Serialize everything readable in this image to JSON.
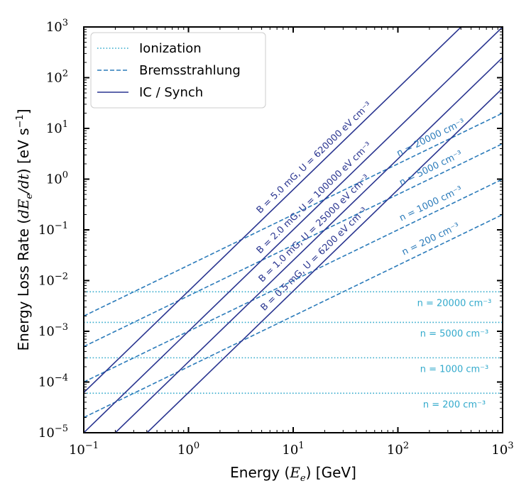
{
  "chart_data": {
    "type": "line",
    "xlabel": "Energy (E_e) [GeV]",
    "ylabel": "Energy Loss Rate (dE_e/dt) [eV s^-1]",
    "xscale": "log",
    "yscale": "log",
    "xlim": [
      0.1,
      1000
    ],
    "ylim": [
      1e-05,
      1000
    ],
    "x_ticks": [
      {
        "value": 0.1,
        "base": "10",
        "exp": "−1"
      },
      {
        "value": 1,
        "base": "10",
        "exp": "0"
      },
      {
        "value": 10,
        "base": "10",
        "exp": "1"
      },
      {
        "value": 100,
        "base": "10",
        "exp": "2"
      },
      {
        "value": 1000,
        "base": "10",
        "exp": "3"
      }
    ],
    "y_ticks": [
      {
        "value": 1e-05,
        "base": "10",
        "exp": "−5"
      },
      {
        "value": 0.0001,
        "base": "10",
        "exp": "−4"
      },
      {
        "value": 0.001,
        "base": "10",
        "exp": "−3"
      },
      {
        "value": 0.01,
        "base": "10",
        "exp": "−2"
      },
      {
        "value": 0.1,
        "base": "10",
        "exp": "−1"
      },
      {
        "value": 1,
        "base": "10",
        "exp": "0"
      },
      {
        "value": 10,
        "base": "10",
        "exp": "1"
      },
      {
        "value": 100,
        "base": "10",
        "exp": "2"
      },
      {
        "value": 1000,
        "base": "10",
        "exp": "3"
      }
    ],
    "legend": {
      "placement": "top-left",
      "entries": [
        {
          "label": "Ionization",
          "style": "dotted",
          "color": "#33aacc"
        },
        {
          "label": "Bremsstrahlung",
          "style": "dashed",
          "color": "#2b7bba"
        },
        {
          "label": "IC / Synch",
          "style": "solid",
          "color": "#2a3590"
        }
      ]
    },
    "series": [
      {
        "group": "Ionization",
        "name": "n = 20000 cm^-3",
        "label": "n = 20000 cm⁻³",
        "kind": "constant",
        "y": 0.006,
        "color": "#33aacc"
      },
      {
        "group": "Ionization",
        "name": "n = 5000 cm^-3",
        "label": "n = 5000 cm⁻³",
        "kind": "constant",
        "y": 0.0015,
        "color": "#33aacc"
      },
      {
        "group": "Ionization",
        "name": "n = 1000 cm^-3",
        "label": "n = 1000 cm⁻³",
        "kind": "constant",
        "y": 0.0003,
        "color": "#33aacc"
      },
      {
        "group": "Ionization",
        "name": "n = 200 cm^-3",
        "label": "n = 200 cm⁻³",
        "kind": "constant",
        "y": 6e-05,
        "color": "#33aacc"
      },
      {
        "group": "Bremsstrahlung",
        "name": "n = 20000 cm^-3",
        "label": "n = 20000 cm⁻³",
        "kind": "power",
        "coef": 0.02,
        "index": 1,
        "color": "#2b7bba"
      },
      {
        "group": "Bremsstrahlung",
        "name": "n = 5000 cm^-3",
        "label": "n = 5000 cm⁻³",
        "kind": "power",
        "coef": 0.005,
        "index": 1,
        "color": "#2b7bba"
      },
      {
        "group": "Bremsstrahlung",
        "name": "n = 1000 cm^-3",
        "label": "n = 1000 cm⁻³",
        "kind": "power",
        "coef": 0.001,
        "index": 1,
        "color": "#2b7bba"
      },
      {
        "group": "Bremsstrahlung",
        "name": "n = 200 cm^-3",
        "label": "n = 200 cm⁻³",
        "kind": "power",
        "coef": 0.0002,
        "index": 1,
        "color": "#2b7bba"
      },
      {
        "group": "IC / Synch",
        "name": "B = 5.0 mG, U = 620000 eV cm^-3",
        "label": "B = 5.0 mG, U = 620000 eV cm⁻³",
        "kind": "power",
        "coef": 0.0062,
        "index": 2,
        "color": "#2a3590"
      },
      {
        "group": "IC / Synch",
        "name": "B = 2.0 mG, U = 100000 eV cm^-3",
        "label": "B = 2.0 mG, U = 100000 eV cm⁻³",
        "kind": "power",
        "coef": 0.001,
        "index": 2,
        "color": "#2a3590"
      },
      {
        "group": "IC / Synch",
        "name": "B = 1.0 mG, U = 25000 eV cm^-3",
        "label": "B = 1.0 mG, U = 25000 eV cm⁻³",
        "kind": "power",
        "coef": 0.00025,
        "index": 2,
        "color": "#2a3590"
      },
      {
        "group": "IC / Synch",
        "name": "B = 0.5 mG, U = 6200 eV cm^-3",
        "label": "B = 0.5 mG, U = 6200 eV cm⁻³",
        "kind": "power",
        "coef": 6.2e-05,
        "index": 2,
        "color": "#2a3590"
      }
    ]
  }
}
